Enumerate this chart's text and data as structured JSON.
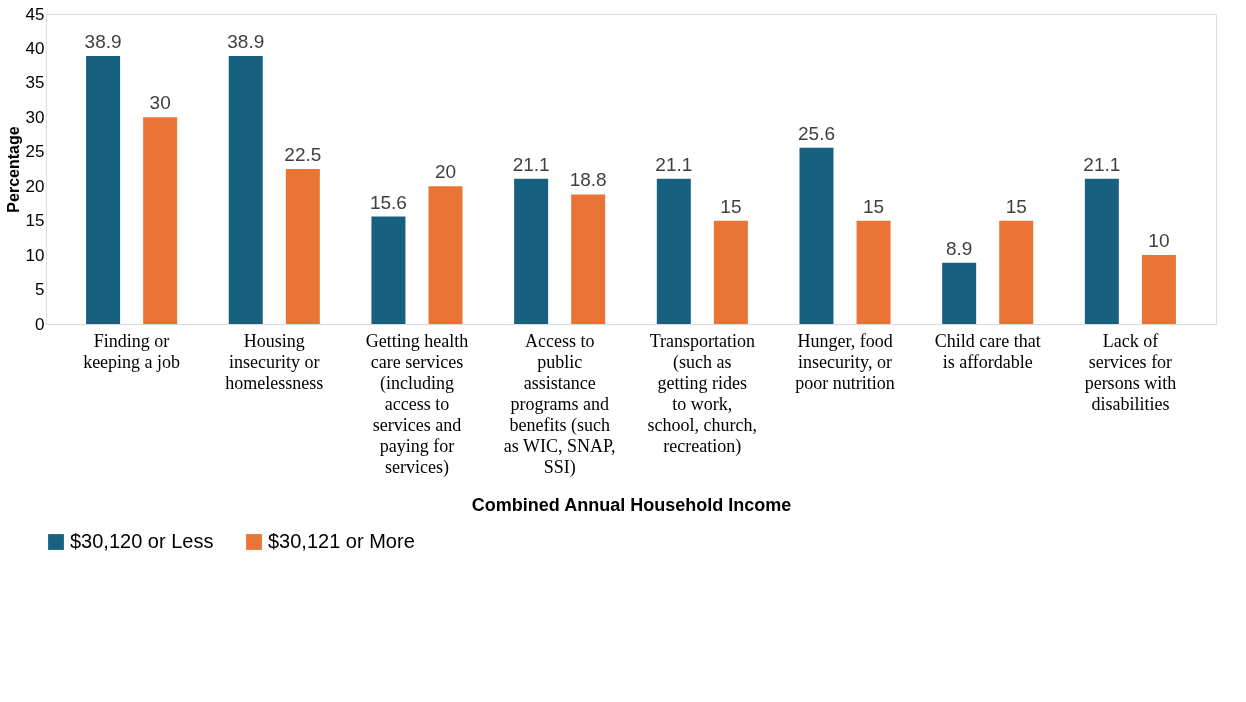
{
  "chart_data": {
    "type": "bar",
    "xlabel": "Combined Annual Household Income",
    "ylabel": "Percentage",
    "categories": [
      "Finding or keeping a job",
      "Housing insecurity or homelessness",
      "Getting health care services (including access to services and paying for services)",
      "Access to public assistance programs and benefits (such as WIC, SNAP, SSI)",
      "Transportation (such as getting rides to work, school, church, recreation)",
      "Hunger, food insecurity, or poor nutrition",
      "Child care that is affordable",
      "Lack of services for persons with disabilities"
    ],
    "series": [
      {
        "name": "$30,120 or Less",
        "color": "#17607f",
        "values": [
          38.9,
          38.9,
          15.6,
          21.1,
          21.1,
          25.6,
          8.9,
          21.1
        ]
      },
      {
        "name": "$30,121 or More",
        "color": "#e97435",
        "values": [
          30,
          22.5,
          20,
          18.8,
          15,
          15,
          15,
          10
        ]
      }
    ],
    "ylim": [
      0,
      45
    ],
    "yticks": [
      0,
      5,
      10,
      15,
      20,
      25,
      30,
      35,
      40,
      45
    ],
    "grid": false,
    "legend": "bottom",
    "data_labels": true
  }
}
